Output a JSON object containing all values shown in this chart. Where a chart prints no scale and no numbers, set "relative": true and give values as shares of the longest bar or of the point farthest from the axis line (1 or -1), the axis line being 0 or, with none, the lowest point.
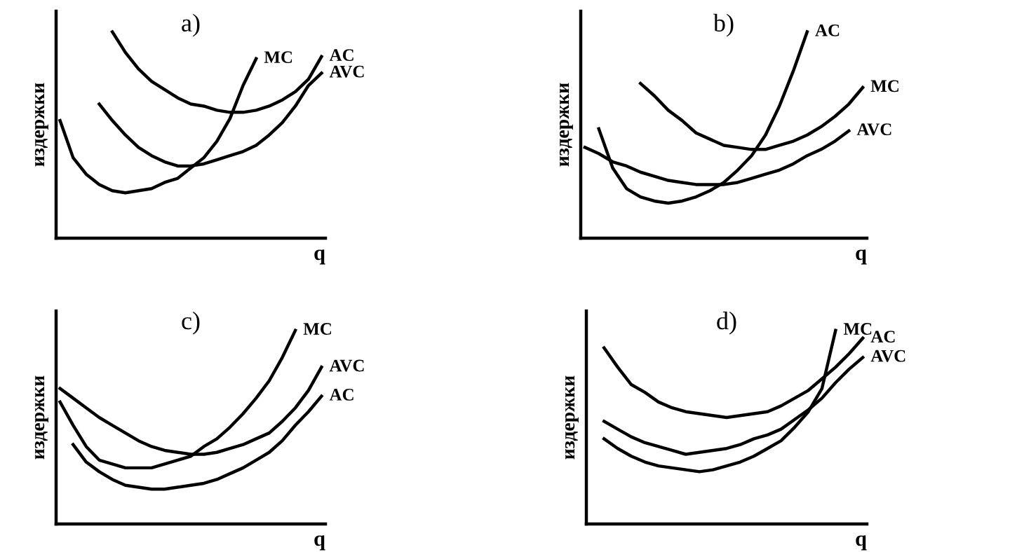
{
  "chart_data": [
    {
      "type": "line",
      "title": "a)",
      "xlabel": "q",
      "ylabel": "издержки",
      "relative": true,
      "marker": "none",
      "line_style": "solid",
      "categories": [
        null,
        null,
        null,
        null,
        null,
        null,
        null,
        null,
        null,
        null,
        null,
        null,
        null,
        null,
        null,
        null,
        null,
        null,
        null,
        null,
        null
      ],
      "series": [
        {
          "name": "MC",
          "color": "#000000",
          "values": [
            0.57,
            0.39,
            0.31,
            0.26,
            0.23,
            0.22,
            0.23,
            0.24,
            0.27,
            0.29,
            0.34,
            0.39,
            0.47,
            0.58,
            0.74,
            0.87,
            null,
            null,
            null,
            null,
            null
          ]
        },
        {
          "name": "AC",
          "color": "#000000",
          "values": [
            null,
            null,
            null,
            null,
            1.0,
            0.9,
            0.82,
            0.76,
            0.72,
            0.68,
            0.65,
            0.64,
            0.62,
            0.61,
            0.61,
            0.62,
            0.64,
            0.67,
            0.71,
            0.77,
            0.88
          ]
        },
        {
          "name": "AVC",
          "color": "#000000",
          "values": [
            null,
            null,
            null,
            0.65,
            0.57,
            0.5,
            0.44,
            0.4,
            0.37,
            0.35,
            0.35,
            0.36,
            0.38,
            0.4,
            0.42,
            0.45,
            0.5,
            0.56,
            0.64,
            0.74,
            0.8
          ]
        }
      ]
    },
    {
      "type": "line",
      "title": "b)",
      "xlabel": "q",
      "ylabel": "издержки",
      "relative": true,
      "marker": "none",
      "line_style": "solid",
      "categories": [
        null,
        null,
        null,
        null,
        null,
        null,
        null,
        null,
        null,
        null,
        null,
        null,
        null,
        null,
        null,
        null,
        null,
        null,
        null,
        null,
        null
      ],
      "series": [
        {
          "name": "AC",
          "color": "#000000",
          "values": [
            null,
            0.53,
            0.34,
            0.24,
            0.2,
            0.18,
            0.17,
            0.18,
            0.2,
            0.23,
            0.27,
            0.33,
            0.4,
            0.5,
            0.64,
            0.81,
            1.0,
            null,
            null,
            null,
            null
          ]
        },
        {
          "name": "MC",
          "color": "#000000",
          "values": [
            null,
            null,
            null,
            null,
            0.75,
            0.69,
            0.62,
            0.57,
            0.51,
            0.48,
            0.45,
            0.44,
            0.43,
            0.43,
            0.45,
            0.47,
            0.5,
            0.54,
            0.59,
            0.65,
            0.73
          ]
        },
        {
          "name": "AVC",
          "color": "#000000",
          "values": [
            0.44,
            0.41,
            0.37,
            0.35,
            0.32,
            0.3,
            0.28,
            0.27,
            0.26,
            0.26,
            0.26,
            0.27,
            0.29,
            0.31,
            0.33,
            0.36,
            0.4,
            0.43,
            0.47,
            0.52,
            null
          ]
        }
      ]
    },
    {
      "type": "line",
      "title": "c)",
      "xlabel": "q",
      "ylabel": "издержки",
      "relative": true,
      "marker": "none",
      "line_style": "solid",
      "categories": [
        null,
        null,
        null,
        null,
        null,
        null,
        null,
        null,
        null,
        null,
        null,
        null,
        null,
        null,
        null,
        null,
        null,
        null,
        null,
        null,
        null
      ],
      "series": [
        {
          "name": "MC",
          "color": "#000000",
          "values": [
            0.63,
            0.51,
            0.4,
            0.33,
            0.31,
            0.29,
            0.29,
            0.29,
            0.31,
            0.33,
            0.35,
            0.4,
            0.44,
            0.5,
            0.57,
            0.65,
            0.74,
            0.86,
            1.0,
            null,
            null
          ]
        },
        {
          "name": "AVC",
          "color": "#000000",
          "values": [
            0.7,
            0.65,
            0.6,
            0.55,
            0.51,
            0.47,
            0.43,
            0.4,
            0.38,
            0.37,
            0.36,
            0.36,
            0.37,
            0.39,
            0.41,
            0.44,
            0.47,
            0.53,
            0.6,
            0.69,
            0.81
          ]
        },
        {
          "name": "AC",
          "color": "#000000",
          "values": [
            null,
            0.41,
            0.32,
            0.27,
            0.23,
            0.2,
            0.19,
            0.18,
            0.18,
            0.19,
            0.2,
            0.21,
            0.23,
            0.26,
            0.29,
            0.33,
            0.37,
            0.43,
            0.51,
            0.58,
            0.66
          ]
        }
      ]
    },
    {
      "type": "line",
      "title": "d)",
      "xlabel": "q",
      "ylabel": "издержки",
      "relative": true,
      "marker": "none",
      "line_style": "solid",
      "categories": [
        null,
        null,
        null,
        null,
        null,
        null,
        null,
        null,
        null,
        null,
        null,
        null,
        null,
        null,
        null,
        null,
        null,
        null,
        null,
        null,
        null
      ],
      "series": [
        {
          "name": "MC",
          "color": "#000000",
          "values": [
            null,
            0.44,
            0.39,
            0.35,
            0.32,
            0.3,
            0.29,
            0.28,
            0.27,
            0.28,
            0.3,
            0.32,
            0.35,
            0.39,
            0.43,
            0.5,
            0.58,
            0.7,
            1.0,
            null,
            null
          ]
        },
        {
          "name": "AC",
          "color": "#000000",
          "values": [
            null,
            0.91,
            0.81,
            0.72,
            0.68,
            0.63,
            0.6,
            0.58,
            0.57,
            0.56,
            0.55,
            0.56,
            0.57,
            0.58,
            0.61,
            0.65,
            0.69,
            0.75,
            0.81,
            0.88,
            0.96
          ]
        },
        {
          "name": "AVC",
          "color": "#000000",
          "values": [
            null,
            0.53,
            0.49,
            0.45,
            0.42,
            0.4,
            0.38,
            0.36,
            0.37,
            0.38,
            0.39,
            0.41,
            0.44,
            0.46,
            0.49,
            0.54,
            0.59,
            0.65,
            0.73,
            0.8,
            0.86
          ]
        }
      ]
    }
  ]
}
